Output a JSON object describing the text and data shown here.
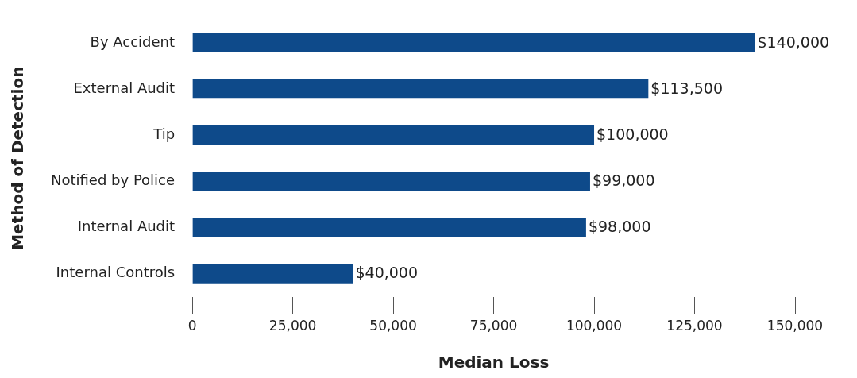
{
  "chart_data": {
    "type": "bar",
    "orientation": "horizontal",
    "xlabel": "Median Loss",
    "ylabel": "Method of Detection",
    "categories": [
      "By Accident",
      "External Audit",
      "Tip",
      "Notified by Police",
      "Internal Audit",
      "Internal Controls"
    ],
    "values": [
      140000,
      113500,
      100000,
      99000,
      98000,
      40000
    ],
    "value_labels": [
      "$140,000",
      "$113,500",
      "$100,000",
      "$99,000",
      "$98,000",
      "$40,000"
    ],
    "color": "#0e4a8a",
    "xlim": [
      0,
      150000
    ],
    "xticks": [
      {
        "value": 0,
        "label": "0"
      },
      {
        "value": 25000,
        "label": "25,000"
      },
      {
        "value": 50000,
        "label": "50,000"
      },
      {
        "value": 75000,
        "label": "75,000"
      },
      {
        "value": 100000,
        "label": "100,000"
      },
      {
        "value": 125000,
        "label": "125,000"
      },
      {
        "value": 150000,
        "label": "150,000"
      }
    ]
  }
}
